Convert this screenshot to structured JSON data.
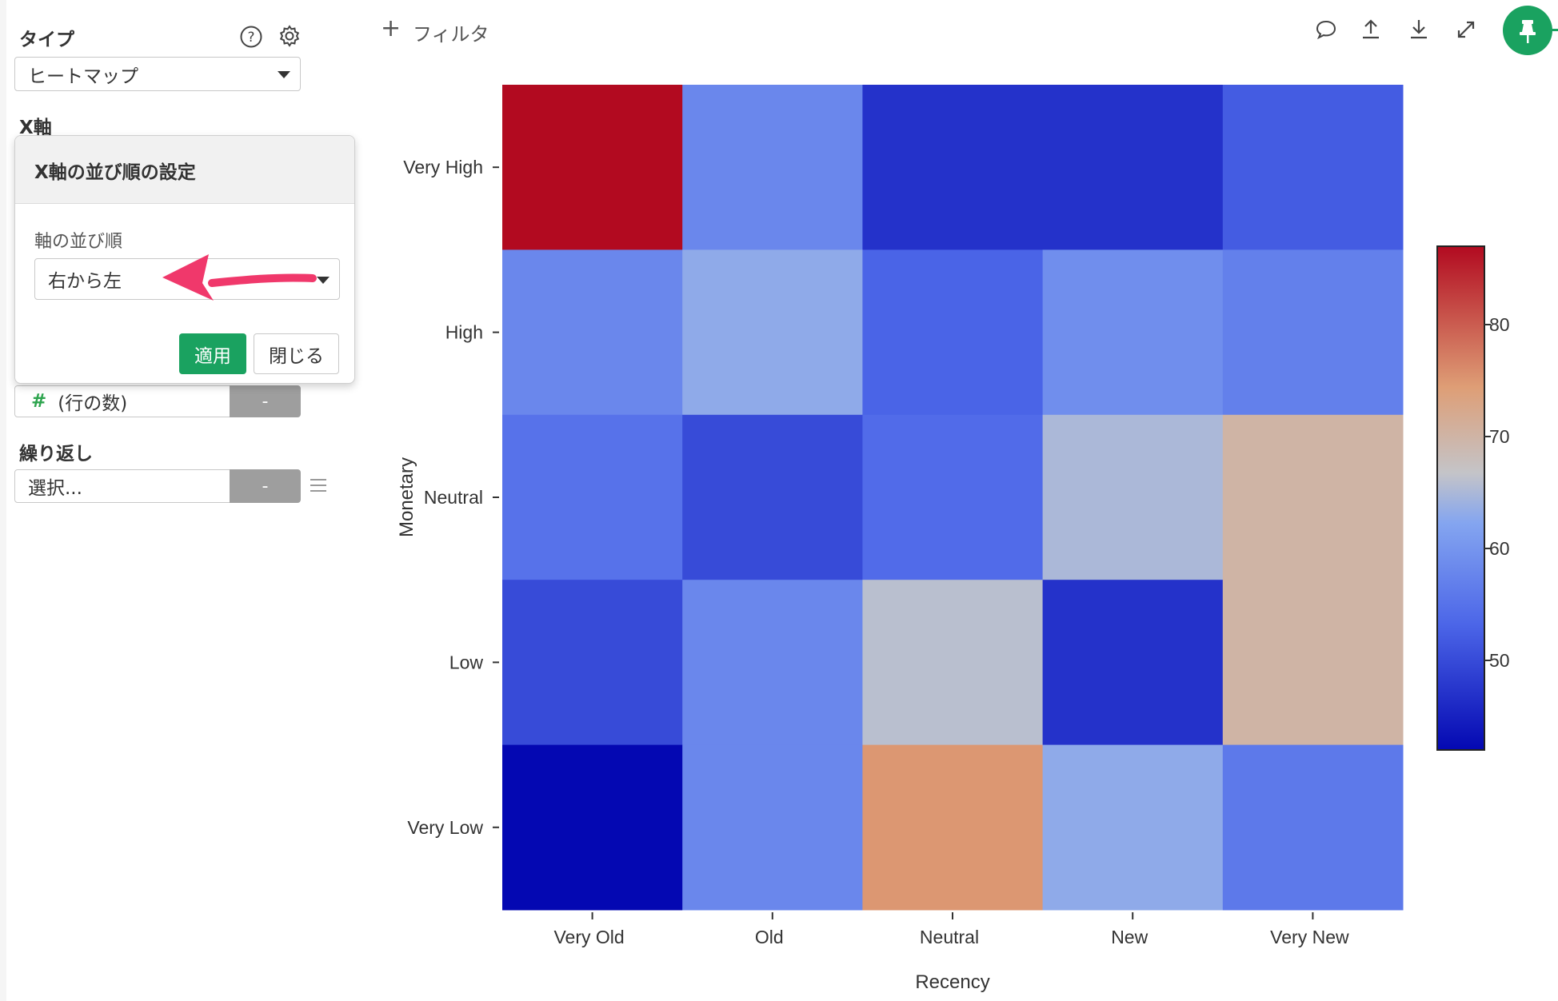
{
  "sidebar": {
    "type_label": "タイプ",
    "type_value": "ヒートマップ",
    "x_axis_label": "X軸",
    "value_field_symbol": "#",
    "value_field": "(行の数)",
    "value_button": "-",
    "repeat_label": "繰り返し",
    "repeat_placeholder": "選択...",
    "repeat_button": "-"
  },
  "popover": {
    "title": "X軸の並び順の設定",
    "order_label": "軸の並び順",
    "order_value": "右から左",
    "apply_button": "適用",
    "close_button": "閉じる"
  },
  "toolbar": {
    "filter_plus": "+",
    "filter_label": "フィルタ"
  },
  "colors": {
    "accent_green": "#1aa260",
    "annotation_arrow": "#f0386b"
  },
  "icons": [
    "help-icon",
    "gear-icon",
    "comment-icon",
    "upload-icon",
    "download-icon",
    "expand-icon",
    "pin-icon",
    "list-icon"
  ],
  "chart_data": {
    "type": "heatmap",
    "xlabel": "Recency",
    "ylabel": "Monetary",
    "x_categories": [
      "Very Old",
      "Old",
      "Neutral",
      "New",
      "Very New"
    ],
    "y_categories": [
      "Very High",
      "High",
      "Neutral",
      "Low",
      "Very Low"
    ],
    "values": [
      [
        88,
        58,
        47,
        47,
        52
      ],
      [
        58,
        63,
        53,
        59,
        57
      ],
      [
        55,
        50,
        54,
        65,
        70
      ],
      [
        50,
        58,
        66,
        47,
        70
      ],
      [
        42,
        58,
        75,
        63,
        56
      ]
    ],
    "colorbar": {
      "min": 42,
      "max": 87,
      "ticks": [
        50,
        60,
        70,
        80
      ],
      "colormap": "coolwarm"
    },
    "grid": false
  }
}
